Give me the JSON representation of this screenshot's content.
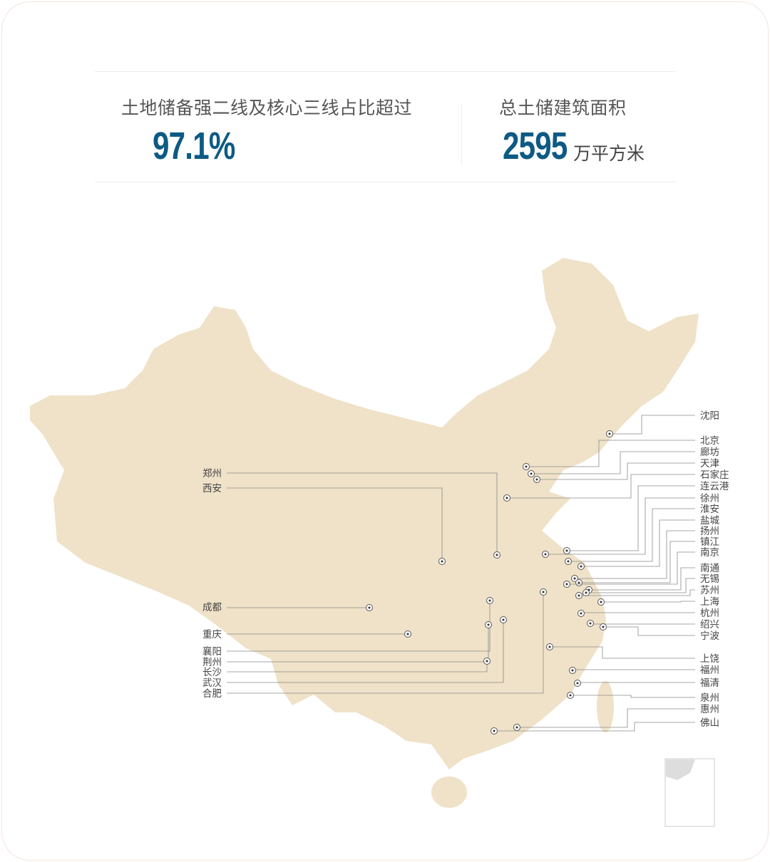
{
  "stats": [
    {
      "label": "土地储备强二线及核心三线占比超过",
      "value": "97.1%"
    },
    {
      "label": "总土储建筑面积",
      "value": "2595",
      "unit": "万平方米"
    }
  ],
  "colors": {
    "accent": "#0d5a84",
    "land": "#efe2c8",
    "leader": "#8a8a8a"
  },
  "map": {
    "region": "China",
    "right_cities": [
      "沈阳",
      "北京",
      "廊坊",
      "天津",
      "石家庄",
      "连云港",
      "徐州",
      "淮安",
      "盐城",
      "扬州",
      "镇江",
      "南京",
      "南通",
      "无锡",
      "苏州",
      "上海",
      "杭州",
      "绍兴",
      "宁波",
      "上饶",
      "福州",
      "福清",
      "泉州",
      "惠州",
      "佛山"
    ],
    "left_cities": [
      "郑州",
      "西安",
      "成都",
      "重庆",
      "襄阳",
      "荆州",
      "长沙",
      "武汉",
      "合肥"
    ]
  }
}
